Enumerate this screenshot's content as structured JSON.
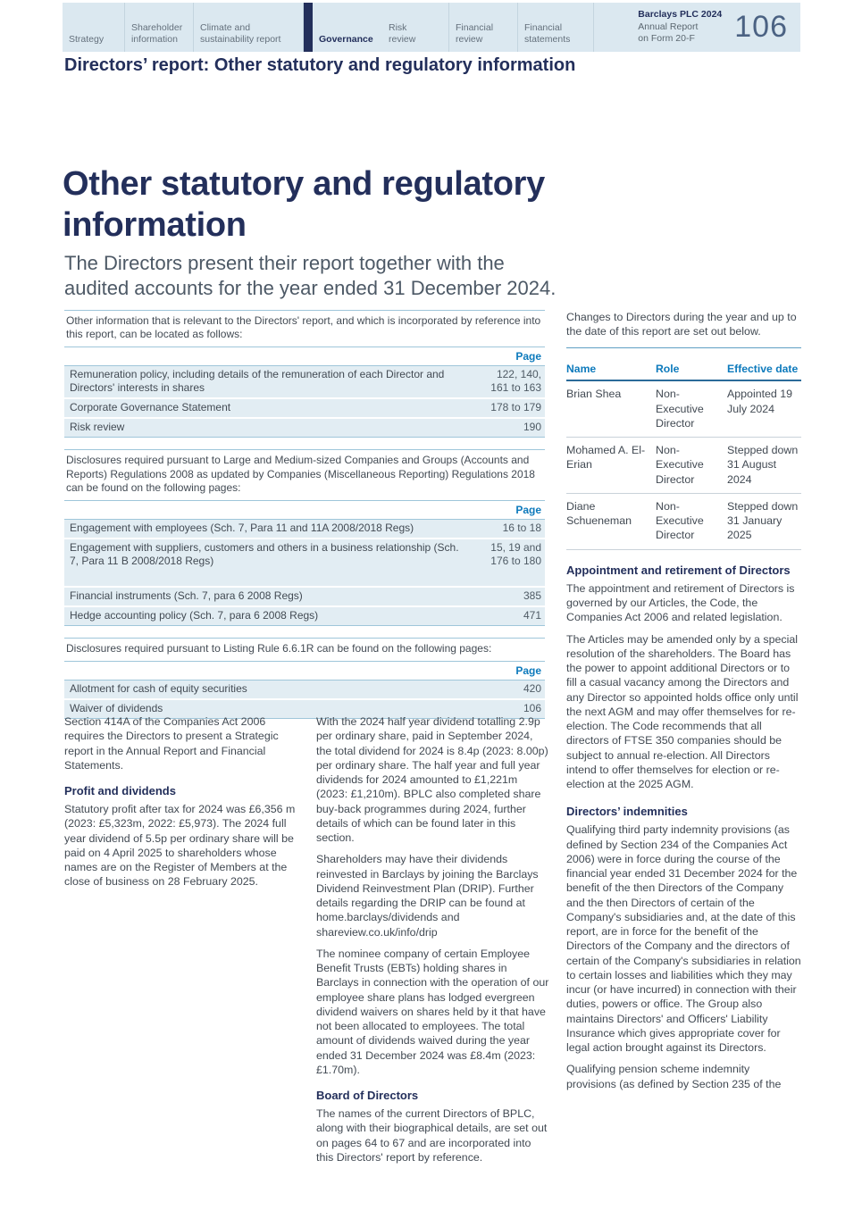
{
  "colors": {
    "navy": "#232f5b",
    "accent_blue": "#0d7abc",
    "band_blue": "#dbe8f0",
    "row_shade": "#e2edf3"
  },
  "header": {
    "tabs": [
      "Strategy",
      "Shareholder information",
      "Climate and sustainability report",
      "Governance",
      "Risk review",
      "Financial review",
      "Financial statements"
    ],
    "active_tab": "Governance",
    "brand_line1": "Barclays PLC 2024",
    "brand_line2": "Annual Report",
    "brand_line3": "on Form 20-F",
    "page_number": "106"
  },
  "crumb_title": "Directors’ report: Other statutory and regulatory information",
  "main": {
    "title": "Other statutory and regulatory information",
    "lede": "The Directors present their report together with the audited accounts for the year ended 31 December 2024."
  },
  "reference_tables": [
    {
      "intro": "Other information that is relevant to the Directors' report, and which is incorporated by reference into this report, can be located as follows:",
      "page_header": "Page",
      "rows": [
        {
          "label": "Remuneration policy, including details of the remuneration of each Director and Directors' interests in shares",
          "page": "122, 140, 161 to 163"
        },
        {
          "label": "Corporate Governance Statement",
          "page": "178 to 179"
        },
        {
          "label": "Risk review",
          "page": "190"
        }
      ]
    },
    {
      "intro": "Disclosures required pursuant to Large and Medium-sized Companies and Groups (Accounts and Reports) Regulations 2008 as updated by Companies (Miscellaneous Reporting) Regulations 2018 can be found on the following pages:",
      "page_header": "Page",
      "rows": [
        {
          "label": "Engagement with employees (Sch. 7, Para 11 and 11A 2008/2018 Regs)",
          "page": "16 to 18"
        },
        {
          "label": "Engagement with suppliers, customers and others in a business relationship (Sch. 7, Para 11 B 2008/2018 Regs)",
          "page": "15, 19 and 176 to 180"
        },
        {
          "label": "Financial instruments (Sch. 7, para 6 2008 Regs)",
          "page": "385"
        },
        {
          "label": "Hedge accounting policy (Sch. 7, para 6 2008 Regs)",
          "page": "471"
        }
      ]
    },
    {
      "intro": "Disclosures required pursuant to Listing Rule 6.6.1R can be found on the following pages:",
      "page_header": "Page",
      "rows": [
        {
          "label": "Allotment for cash of equity securities",
          "page": "420"
        },
        {
          "label": "Waiver of dividends",
          "page": "106"
        }
      ]
    }
  ],
  "left_column": {
    "p1": "Section 414A of the Companies Act 2006 requires the Directors to present a Strategic report in the Annual Report and Financial Statements.",
    "heading": "Profit and dividends",
    "p2": "Statutory profit after tax for 2024 was £6,356 m (2023: £5,323m, 2022: £5,973). The 2024 full year dividend of 5.5p per ordinary share will be paid on 4 April 2025 to shareholders whose names are on the Register of Members at the close of business on 28 February 2025."
  },
  "middle_column": {
    "p1": "With the 2024 half year dividend totalling 2.9p per ordinary share, paid in September 2024, the total dividend for 2024 is 8.4p (2023: 8.00p) per ordinary share. The half year and full year dividends for 2024 amounted to £1,221m (2023: £1,210m). BPLC also completed share buy-back programmes during 2024, further details of which can be found later in this section.",
    "p2": "Shareholders may have their dividends reinvested in Barclays by joining the Barclays Dividend Reinvestment Plan (DRIP). Further details regarding the DRIP can be found at home.barclays/dividends and shareview.co.uk/info/drip",
    "p3": "The nominee company of certain Employee Benefit Trusts (EBTs) holding shares in Barclays in connection with the operation of our employee share plans has lodged evergreen dividend waivers on shares held by it that have not been allocated to employees. The total amount of dividends waived during the year ended 31 December 2024 was £8.4m (2023: £1.70m).",
    "heading": "Board of Directors",
    "p4": "The names of the current Directors of BPLC, along with their biographical details, are set out on pages 64 to 67 and are incorporated into this Directors' report by reference."
  },
  "directors_changes": {
    "intro": "Changes to Directors during the year and up to the date of this report are set out below.",
    "columns": {
      "name": "Name",
      "role": "Role",
      "date": "Effective date"
    },
    "rows": [
      {
        "name": "Brian Shea",
        "role": "Non-Executive Director",
        "date": "Appointed 19 July 2024"
      },
      {
        "name": "Mohamed A. El-Erian",
        "role": "Non-Executive Director",
        "date": "Stepped down 31 August 2024"
      },
      {
        "name": "Diane Schueneman",
        "role": "Non-Executive Director",
        "date": "Stepped down 31 January 2025"
      }
    ]
  },
  "right_column": {
    "heading_appointment": "Appointment and retirement of Directors",
    "p1": "The appointment and retirement of Directors is governed by our Articles, the Code, the Companies Act 2006 and related legislation.",
    "p2": "The Articles may be amended only by a special resolution of the shareholders. The Board has the power to appoint additional Directors or to fill a casual vacancy among the Directors and any Director so appointed holds office only until the next AGM and may offer themselves for re-election. The Code recommends that all directors of FTSE 350 companies should be subject to annual re-election. All Directors intend to offer themselves for election or re-election at the 2025 AGM.",
    "heading_indemnities": "Directors’ indemnities",
    "p3": "Qualifying third party indemnity provisions (as defined by Section 234 of the Companies Act 2006) were in force during the course of the financial year ended 31 December 2024 for the benefit of the then Directors of the Company and the then Directors of certain of the Company's subsidiaries and, at the date of this report, are in force for the benefit of the Directors of the Company and the directors of certain of the Company's subsidiaries in relation to certain losses and liabilities which they may incur (or have incurred) in connection with their duties, powers or office. The Group also maintains Directors' and Officers' Liability Insurance which gives appropriate cover for legal action brought against its Directors.",
    "p4": "Qualifying pension scheme indemnity provisions (as defined by Section 235 of the"
  }
}
